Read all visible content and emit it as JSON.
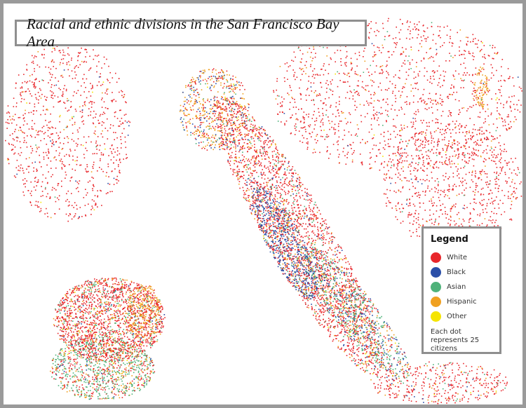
{
  "title": "Racial and ethnic divisions in the San Francisco Bay Area",
  "legend": {
    "title": "Legend",
    "items": [
      {
        "label": "White",
        "color": "#e8262b"
      },
      {
        "label": "Black",
        "color": "#2b4fa8"
      },
      {
        "label": "Asian",
        "color": "#4fb27a"
      },
      {
        "label": "Hispanic",
        "color": "#f0a020"
      },
      {
        "label": "Other",
        "color": "#f5e400"
      }
    ],
    "note": "Each dot represents 25 citizens"
  }
}
